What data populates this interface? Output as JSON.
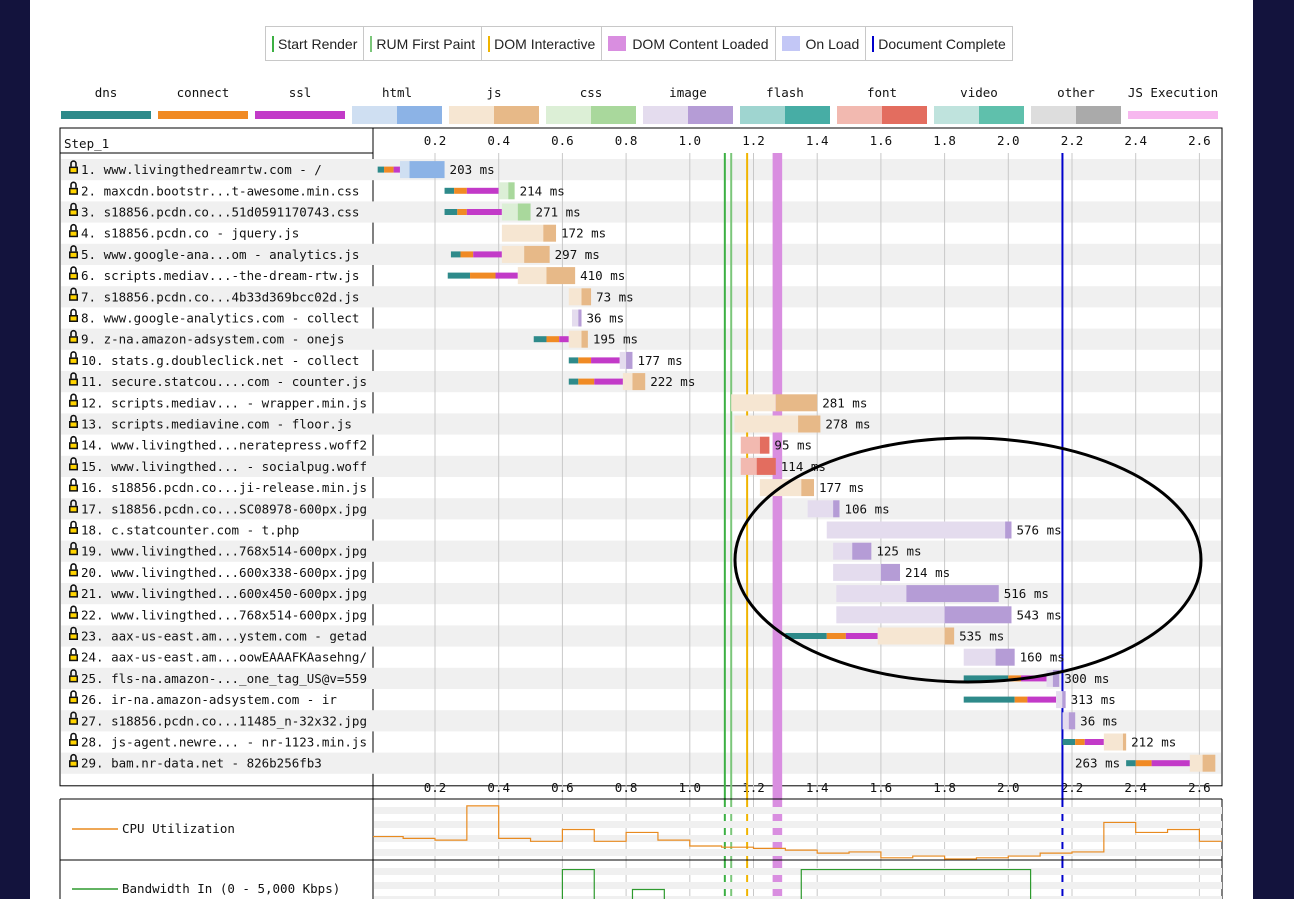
{
  "legend": [
    {
      "label": "Start Render",
      "kind": "line",
      "color": "#3cb043"
    },
    {
      "label": "RUM First Paint",
      "kind": "line",
      "color": "#7bc67a"
    },
    {
      "label": "DOM Interactive",
      "kind": "line",
      "color": "#f0b400"
    },
    {
      "label": "DOM Content Loaded",
      "kind": "box",
      "color": "#d98ee0"
    },
    {
      "label": "On Load",
      "kind": "box",
      "color": "#c3c7f6"
    },
    {
      "label": "Document Complete",
      "kind": "line",
      "color": "#0000cc"
    }
  ],
  "resource_types": [
    {
      "label": "dns",
      "c1": "#2e8a8a",
      "c2": "#2e8a8a"
    },
    {
      "label": "connect",
      "c1": "#f08a24",
      "c2": "#f08a24"
    },
    {
      "label": "ssl",
      "c1": "#c23ac8",
      "c2": "#c23ac8"
    },
    {
      "label": "html",
      "c1": "#cfdff2",
      "c2": "#8cb3e6"
    },
    {
      "label": "js",
      "c1": "#f6e6d2",
      "c2": "#e7b988"
    },
    {
      "label": "css",
      "c1": "#dcefd6",
      "c2": "#a9d89c"
    },
    {
      "label": "image",
      "c1": "#e4dcee",
      "c2": "#b59cd6"
    },
    {
      "label": "flash",
      "c1": "#9fd5d0",
      "c2": "#47ada5"
    },
    {
      "label": "font",
      "c1": "#f2b9b0",
      "c2": "#e36d5f"
    },
    {
      "label": "video",
      "c1": "#bfe3dd",
      "c2": "#5fc0ac"
    },
    {
      "label": "other",
      "c1": "#dddddd",
      "c2": "#aaaaaa"
    },
    {
      "label": "JS Execution",
      "c1": "#f7b8ef",
      "c2": "#f7b8ef"
    }
  ],
  "step_label": "Step_1",
  "chart_data": {
    "type": "waterfall",
    "x_unit": "seconds",
    "xlim": [
      0,
      2.65
    ],
    "x_ticks": [
      "0.2",
      "0.4",
      "0.6",
      "0.8",
      "1.0",
      "1.2",
      "1.4",
      "1.6",
      "1.8",
      "2.0",
      "2.2",
      "2.4",
      "2.6"
    ],
    "markers": {
      "start_render": 1.11,
      "rum_first_paint": 1.13,
      "dom_interactive": 1.18,
      "dom_content_loaded": [
        1.26,
        1.29
      ],
      "document_complete": 2.17
    },
    "requests": [
      {
        "label": "1. www.livingthedreamrtw.com - /",
        "type": "html",
        "dns": [
          0.02,
          0.04
        ],
        "connect": [
          0.04,
          0.07
        ],
        "ssl": [
          0.07,
          0.09
        ],
        "start": 0.09,
        "ttfb": 0.12,
        "end": 0.23,
        "duration": "203 ms"
      },
      {
        "label": "2. maxcdn.bootstr...t-awesome.min.css",
        "type": "css",
        "dns": [
          0.23,
          0.26
        ],
        "connect": [
          0.26,
          0.3
        ],
        "ssl": [
          0.3,
          0.4
        ],
        "start": 0.4,
        "ttfb": 0.43,
        "end": 0.45,
        "duration": "214 ms"
      },
      {
        "label": "3. s18856.pcdn.co...51d0591170743.css",
        "type": "css",
        "dns": [
          0.23,
          0.27
        ],
        "connect": [
          0.27,
          0.3
        ],
        "ssl": [
          0.3,
          0.41
        ],
        "start": 0.41,
        "ttfb": 0.46,
        "end": 0.5,
        "duration": "271 ms"
      },
      {
        "label": "4. s18856.pcdn.co - jquery.js",
        "type": "js",
        "start": 0.41,
        "ttfb": 0.54,
        "end": 0.58,
        "duration": "172 ms"
      },
      {
        "label": "5. www.google-ana...om - analytics.js",
        "type": "js",
        "dns": [
          0.25,
          0.28
        ],
        "connect": [
          0.28,
          0.32
        ],
        "ssl": [
          0.32,
          0.41
        ],
        "start": 0.41,
        "ttfb": 0.48,
        "end": 0.56,
        "duration": "297 ms"
      },
      {
        "label": "6. scripts.mediav...-the-dream-rtw.js",
        "type": "js",
        "dns": [
          0.24,
          0.31
        ],
        "connect": [
          0.31,
          0.39
        ],
        "ssl": [
          0.39,
          0.46
        ],
        "start": 0.46,
        "ttfb": 0.55,
        "end": 0.64,
        "duration": "410 ms"
      },
      {
        "label": "7. s18856.pcdn.co...4b33d369bcc02d.js",
        "type": "js",
        "start": 0.62,
        "ttfb": 0.66,
        "end": 0.69,
        "duration": "73 ms"
      },
      {
        "label": "8. www.google-analytics.com - collect",
        "type": "image",
        "start": 0.63,
        "ttfb": 0.65,
        "end": 0.66,
        "duration": "36 ms"
      },
      {
        "label": "9. z-na.amazon-adsystem.com - onejs",
        "type": "js",
        "dns": [
          0.51,
          0.55
        ],
        "connect": [
          0.55,
          0.59
        ],
        "ssl": [
          0.59,
          0.62
        ],
        "start": 0.62,
        "ttfb": 0.66,
        "end": 0.68,
        "duration": "195 ms"
      },
      {
        "label": "10. stats.g.doubleclick.net - collect",
        "type": "image",
        "dns": [
          0.62,
          0.65
        ],
        "connect": [
          0.65,
          0.69
        ],
        "ssl": [
          0.69,
          0.78
        ],
        "start": 0.78,
        "ttfb": 0.8,
        "end": 0.82,
        "duration": "177 ms"
      },
      {
        "label": "11. secure.statcou....com - counter.js",
        "type": "js",
        "dns": [
          0.62,
          0.65
        ],
        "connect": [
          0.65,
          0.7
        ],
        "ssl": [
          0.7,
          0.79
        ],
        "start": 0.79,
        "ttfb": 0.82,
        "end": 0.86,
        "duration": "222 ms"
      },
      {
        "label": "12. scripts.mediav... - wrapper.min.js",
        "type": "js",
        "start": 1.13,
        "ttfb": 1.27,
        "end": 1.4,
        "duration": "281 ms"
      },
      {
        "label": "13. scripts.mediavine.com - floor.js",
        "type": "js",
        "start": 1.14,
        "ttfb": 1.34,
        "end": 1.41,
        "duration": "278 ms"
      },
      {
        "label": "14. www.livingthed...neratepress.woff2",
        "type": "font",
        "start": 1.16,
        "ttfb": 1.22,
        "end": 1.25,
        "duration": "95 ms"
      },
      {
        "label": "15. www.livingthed... - socialpug.woff",
        "type": "font",
        "start": 1.16,
        "ttfb": 1.21,
        "end": 1.27,
        "duration": "114 ms"
      },
      {
        "label": "16. s18856.pcdn.co...ji-release.min.js",
        "type": "js",
        "start": 1.22,
        "ttfb": 1.35,
        "end": 1.39,
        "duration": "177 ms"
      },
      {
        "label": "17. s18856.pcdn.co...SC08978-600px.jpg",
        "type": "image",
        "start": 1.37,
        "ttfb": 1.45,
        "end": 1.47,
        "duration": "106 ms"
      },
      {
        "label": "18. c.statcounter.com - t.php",
        "type": "image",
        "start": 1.43,
        "ttfb": 1.99,
        "end": 2.01,
        "duration": "576 ms"
      },
      {
        "label": "19. www.livingthed...768x514-600px.jpg",
        "type": "image",
        "start": 1.45,
        "ttfb": 1.51,
        "end": 1.57,
        "duration": "125 ms"
      },
      {
        "label": "20. www.livingthed...600x338-600px.jpg",
        "type": "image",
        "start": 1.45,
        "ttfb": 1.6,
        "end": 1.66,
        "duration": "214 ms"
      },
      {
        "label": "21. www.livingthed...600x450-600px.jpg",
        "type": "image",
        "start": 1.46,
        "ttfb": 1.68,
        "end": 1.97,
        "duration": "516 ms"
      },
      {
        "label": "22. www.livingthed...768x514-600px.jpg",
        "type": "image",
        "start": 1.46,
        "ttfb": 1.8,
        "end": 2.01,
        "duration": "543 ms"
      },
      {
        "label": "23. aax-us-east.am...ystem.com - getad",
        "type": "js",
        "dns": [
          1.3,
          1.43
        ],
        "connect": [
          1.43,
          1.49
        ],
        "ssl": [
          1.49,
          1.59
        ],
        "start": 1.59,
        "ttfb": 1.8,
        "end": 1.83,
        "duration": "535 ms"
      },
      {
        "label": "24. aax-us-east.am...oowEAAAFKAasehng/",
        "type": "image",
        "start": 1.86,
        "ttfb": 1.96,
        "end": 2.02,
        "duration": "160 ms"
      },
      {
        "label": "25. fls-na.amazon-..._one_tag_US@v=559",
        "type": "image",
        "dns": [
          1.86,
          2.0
        ],
        "connect": [
          2.0,
          2.04
        ],
        "ssl": [
          2.04,
          2.12
        ],
        "start": 2.12,
        "ttfb": 2.14,
        "end": 2.16,
        "duration": "300 ms"
      },
      {
        "label": "26. ir-na.amazon-adsystem.com - ir",
        "type": "image",
        "dns": [
          1.86,
          2.02
        ],
        "connect": [
          2.02,
          2.06
        ],
        "ssl": [
          2.06,
          2.15
        ],
        "start": 2.15,
        "ttfb": 2.17,
        "end": 2.18,
        "duration": "313 ms"
      },
      {
        "label": "27. s18856.pcdn.co...11485_n-32x32.jpg",
        "type": "image",
        "start": 2.17,
        "ttfb": 2.19,
        "end": 2.21,
        "duration": "36 ms"
      },
      {
        "label": "28. js-agent.newre... - nr-1123.min.js",
        "type": "js",
        "dns": [
          2.17,
          2.21
        ],
        "connect": [
          2.21,
          2.24
        ],
        "ssl": [
          2.24,
          2.3
        ],
        "start": 2.3,
        "ttfb": 2.36,
        "end": 2.37,
        "duration": "212 ms"
      },
      {
        "label": "29. bam.nr-data.net - 826b256fb3",
        "type": "js",
        "dns": [
          2.37,
          2.4
        ],
        "connect": [
          2.4,
          2.45
        ],
        "ssl": [
          2.45,
          2.57
        ],
        "start": 2.57,
        "ttfb": 2.61,
        "end": 2.65,
        "duration": "263 ms",
        "label_left": true
      }
    ],
    "js_execution": [
      [
        0.53,
        0.54
      ],
      [
        1.11,
        1.15
      ],
      [
        1.16,
        1.18
      ],
      [
        1.23,
        1.25
      ],
      [
        1.28,
        1.31
      ],
      [
        1.5,
        1.59
      ],
      [
        1.27,
        1.29
      ]
    ],
    "cpu": {
      "label": "CPU Utilization",
      "color": "#e88a1f",
      "values": [
        [
          0.0,
          0.38
        ],
        [
          0.1,
          0.35
        ],
        [
          0.2,
          0.32
        ],
        [
          0.3,
          0.9
        ],
        [
          0.4,
          0.35
        ],
        [
          0.5,
          0.3
        ],
        [
          0.6,
          0.5
        ],
        [
          0.7,
          0.3
        ],
        [
          0.8,
          0.45
        ],
        [
          0.9,
          0.32
        ],
        [
          1.0,
          0.22
        ],
        [
          1.1,
          0.2
        ],
        [
          1.2,
          0.18
        ],
        [
          1.3,
          0.15
        ],
        [
          1.4,
          0.1
        ],
        [
          1.5,
          0.12
        ],
        [
          1.6,
          0.02
        ],
        [
          1.7,
          0.05
        ],
        [
          1.8,
          0.0
        ],
        [
          1.9,
          0.02
        ],
        [
          2.0,
          0.05
        ],
        [
          2.1,
          0.1
        ],
        [
          2.2,
          0.12
        ],
        [
          2.3,
          0.62
        ],
        [
          2.4,
          0.45
        ],
        [
          2.5,
          0.5
        ],
        [
          2.6,
          0.3
        ],
        [
          2.65,
          0.3
        ]
      ]
    },
    "bandwidth": {
      "label": "Bandwidth In (0 - 5,000 Kbps)",
      "color": "#2e9a2e",
      "values": [
        [
          0.0,
          0.0
        ],
        [
          0.3,
          0.22
        ],
        [
          0.4,
          0.0
        ],
        [
          0.6,
          0.85
        ],
        [
          0.7,
          0.0
        ],
        [
          0.82,
          0.5
        ],
        [
          0.92,
          0.0
        ],
        [
          1.35,
          0.85
        ],
        [
          2.07,
          0.3
        ],
        [
          2.17,
          0.0
        ]
      ]
    }
  }
}
